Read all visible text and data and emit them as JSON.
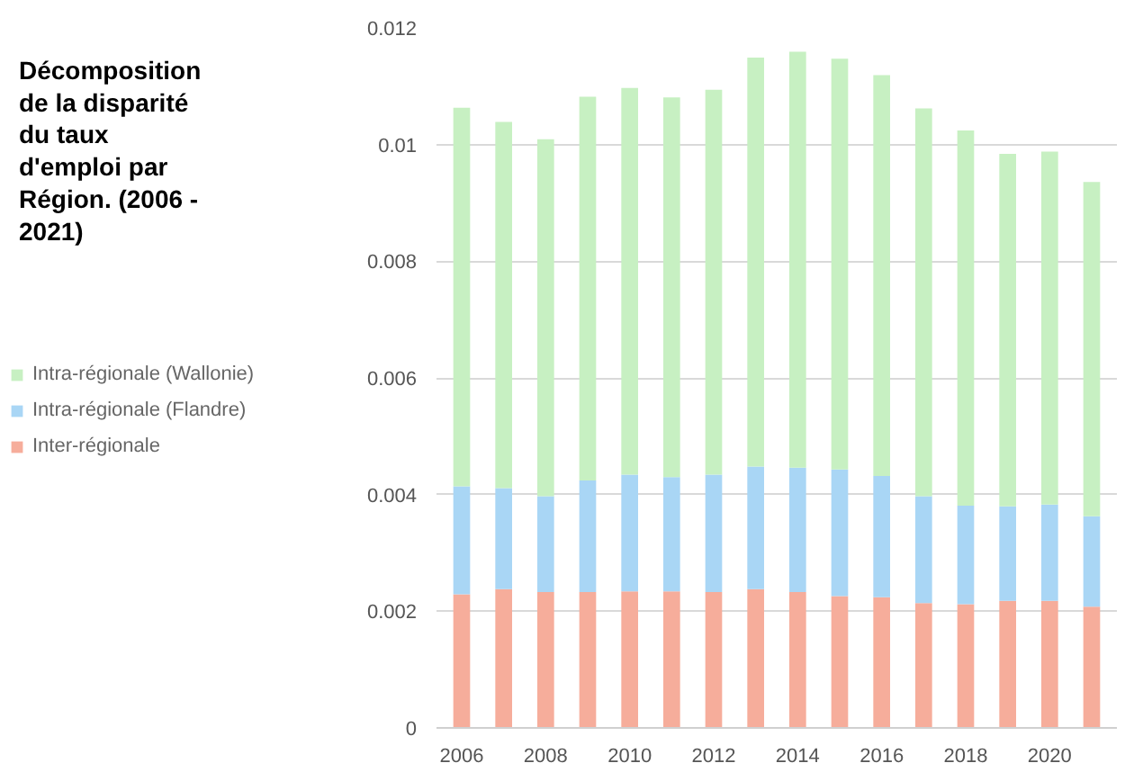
{
  "chart_data": {
    "type": "bar",
    "stacked": true,
    "title": "Décomposition de la disparité du taux d'emploi par Région. (2006 - 2021)",
    "x": [
      2006,
      2007,
      2008,
      2009,
      2010,
      2011,
      2012,
      2013,
      2014,
      2015,
      2016,
      2017,
      2018,
      2019,
      2020,
      2021
    ],
    "series": [
      {
        "name": "Inter-régionale",
        "color": "#f6ad9b",
        "values": [
          0.00229,
          0.00238,
          0.00233,
          0.00233,
          0.00234,
          0.00234,
          0.00233,
          0.00238,
          0.00233,
          0.00226,
          0.00224,
          0.00214,
          0.00212,
          0.00218,
          0.00218,
          0.00208
        ]
      },
      {
        "name": "Intra-régionale (Flandre)",
        "color": "#a9d6f5",
        "values": [
          0.00185,
          0.00173,
          0.00164,
          0.00191,
          0.002,
          0.00196,
          0.00201,
          0.0021,
          0.00213,
          0.00217,
          0.00208,
          0.00183,
          0.00169,
          0.00162,
          0.00165,
          0.00155
        ]
      },
      {
        "name": "Intra-régionale (Wallonie)",
        "color": "#c7f0c2",
        "values": [
          0.00649,
          0.00628,
          0.00612,
          0.00658,
          0.00663,
          0.00651,
          0.0066,
          0.00701,
          0.00713,
          0.00704,
          0.00687,
          0.00665,
          0.00643,
          0.00604,
          0.00605,
          0.00573
        ]
      }
    ],
    "xlim": [
      2005.4,
      2021.6
    ],
    "xticks": [
      2006,
      2008,
      2010,
      2012,
      2014,
      2016,
      2018,
      2020
    ],
    "ylim": [
      0,
      0.012
    ],
    "yticks": [
      0,
      0.002,
      0.004,
      0.006,
      0.008,
      0.01,
      0.012
    ],
    "grid": "y",
    "legend": "left"
  }
}
